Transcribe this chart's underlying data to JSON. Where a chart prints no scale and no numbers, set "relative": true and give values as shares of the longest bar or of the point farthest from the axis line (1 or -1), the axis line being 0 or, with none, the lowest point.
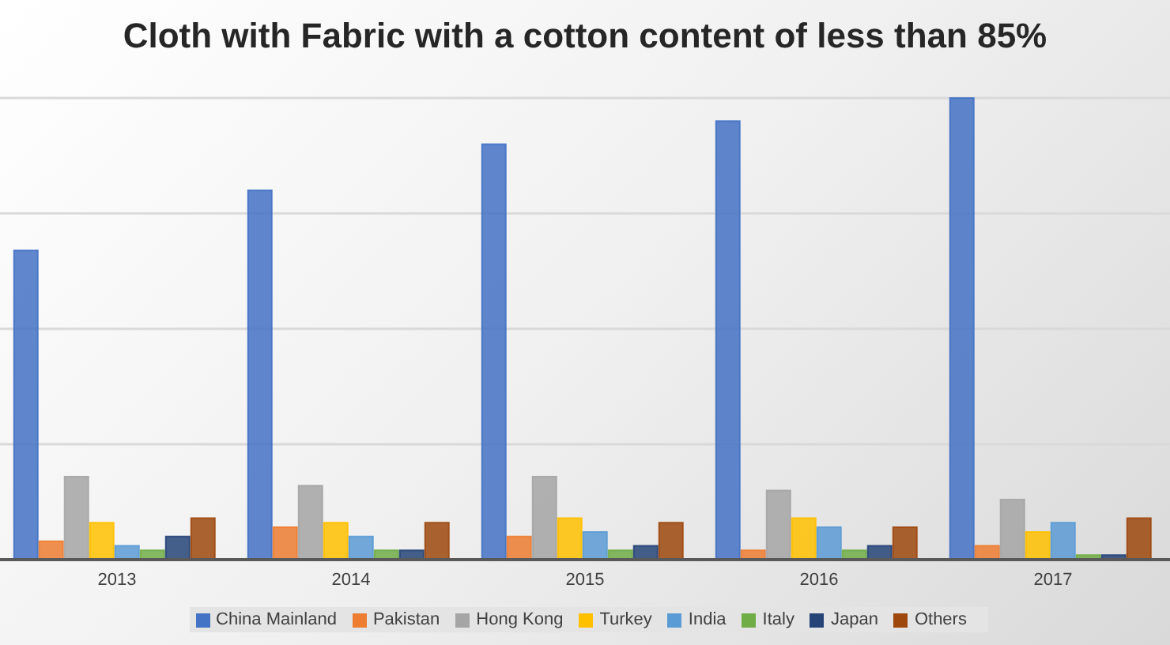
{
  "chart_data": {
    "type": "bar",
    "title": "Cloth with Fabric with a cotton content of less than 85%",
    "categories": [
      "2013",
      "2014",
      "2015",
      "2016",
      "2017"
    ],
    "relative": true,
    "series": [
      {
        "name": "China Mainland",
        "color": "#4472c4",
        "values": [
          0.67,
          0.8,
          0.9,
          0.95,
          1
        ]
      },
      {
        "name": "Pakistan",
        "color": "#ed7d31",
        "values": [
          0.04,
          0.07,
          0.05,
          0.02,
          0.03
        ]
      },
      {
        "name": "Hong Kong",
        "color": "#a5a5a5",
        "values": [
          0.18,
          0.16,
          0.18,
          0.15,
          0.13
        ]
      },
      {
        "name": "Turkey",
        "color": "#ffc000",
        "values": [
          0.08,
          0.08,
          0.09,
          0.09,
          0.06
        ]
      },
      {
        "name": "India",
        "color": "#5b9bd5",
        "values": [
          0.03,
          0.05,
          0.06,
          0.07,
          0.08
        ]
      },
      {
        "name": "Italy",
        "color": "#70ad47",
        "values": [
          0.02,
          0.02,
          0.02,
          0.02,
          0.01
        ]
      },
      {
        "name": "Japan",
        "color": "#264478",
        "values": [
          0.05,
          0.02,
          0.03,
          0.03,
          0.01
        ]
      },
      {
        "name": "Others",
        "color": "#9e480e",
        "values": [
          0.09,
          0.08,
          0.08,
          0.07,
          0.09
        ]
      }
    ],
    "grid": "y",
    "legend": "bottom"
  }
}
